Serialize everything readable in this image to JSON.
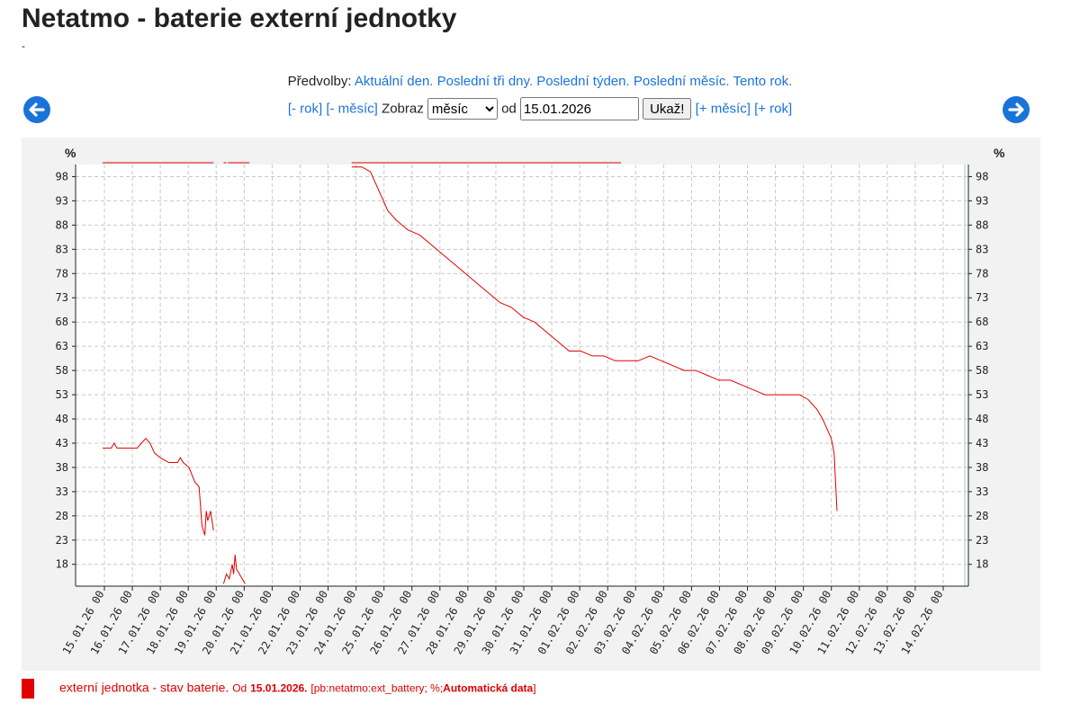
{
  "page": {
    "title": "Netatmo - baterie externí jednotky",
    "subtitle": "-"
  },
  "presets": {
    "label": "Předvolby:",
    "items": [
      "Aktuální den.",
      "Poslední tři dny.",
      "Poslední týden.",
      "Poslední měsíc.",
      "Tento rok."
    ]
  },
  "controls": {
    "prev_year": "[- rok]",
    "prev_month": "[- měsíc]",
    "show_label": "Zobraz",
    "range_options": [
      "měsíc"
    ],
    "range_selected": "měsíc",
    "from_label": "od",
    "date_value": "15.01.2026",
    "submit_label": "Ukaž!",
    "next_month": "[+ měsíc]",
    "next_year": "[+ rok]"
  },
  "icons": {
    "prev": "arrow-left-circle-icon",
    "next": "arrow-right-circle-icon"
  },
  "colors": {
    "series": "#e00000",
    "link": "#1a73d9",
    "plot_bg": "#f2f2f2"
  },
  "chart_data": {
    "type": "line",
    "ylabel_left": "%",
    "ylabel_right": "%",
    "ylim": [
      13.5,
      100.5
    ],
    "yticks": [
      98,
      93,
      88,
      83,
      78,
      73,
      68,
      63,
      58,
      53,
      48,
      43,
      38,
      33,
      28,
      23,
      18
    ],
    "xticks": [
      "15.01.26 00",
      "16.01.26 00",
      "17.01.26 00",
      "18.01.26 00",
      "19.01.26 00",
      "20.01.26 00",
      "21.01.26 00",
      "22.01.26 00",
      "23.01.26 00",
      "24.01.26 00",
      "25.01.26 00",
      "26.01.26 00",
      "27.01.26 00",
      "28.01.26 00",
      "29.01.26 00",
      "30.01.26 00",
      "31.01.26 00",
      "01.02.26 00",
      "02.02.26 00",
      "03.02.26 00",
      "04.02.26 00",
      "05.02.26 00",
      "06.02.26 00",
      "07.02.26 00",
      "08.02.26 00",
      "09.02.26 00",
      "10.02.26 00",
      "11.02.26 00",
      "12.02.26 00",
      "13.02.26 00",
      "14.02.26 00"
    ],
    "grid": true,
    "series": [
      {
        "name": "externí jednotka - stav baterie.",
        "segments": [
          [
            [
              14.0,
              42
            ],
            [
              14.3,
              42
            ],
            [
              14.4,
              43
            ],
            [
              14.5,
              42
            ],
            [
              15.0,
              42
            ],
            [
              15.2,
              42
            ],
            [
              15.35,
              43
            ],
            [
              15.5,
              44
            ],
            [
              15.65,
              43
            ],
            [
              15.8,
              41
            ],
            [
              16.0,
              40
            ],
            [
              16.3,
              39
            ],
            [
              16.6,
              39
            ],
            [
              16.7,
              40
            ],
            [
              16.8,
              39
            ],
            [
              17.0,
              38
            ],
            [
              17.2,
              35
            ],
            [
              17.35,
              34
            ],
            [
              17.45,
              26
            ],
            [
              17.55,
              24
            ],
            [
              17.6,
              29
            ],
            [
              17.65,
              27
            ],
            [
              17.75,
              29
            ],
            [
              17.85,
              25
            ]
          ],
          [
            [
              18.2,
              14
            ],
            [
              18.3,
              16
            ],
            [
              18.4,
              15
            ],
            [
              18.5,
              18
            ],
            [
              18.55,
              16
            ],
            [
              18.6,
              20
            ],
            [
              18.65,
              17
            ],
            [
              18.75,
              16
            ],
            [
              18.85,
              15
            ],
            [
              18.95,
              14
            ]
          ]
        ],
        "top_band_segments": [
          [
            14.0,
            17.85
          ],
          [
            18.2,
            18.3
          ],
          [
            18.35,
            19.1
          ],
          [
            22.65,
            32.0
          ]
        ],
        "main_curve": [
          [
            22.65,
            101
          ],
          [
            23.0,
            101
          ],
          [
            23.3,
            99
          ],
          [
            23.6,
            95
          ],
          [
            23.9,
            91
          ],
          [
            24.2,
            89
          ],
          [
            24.6,
            87
          ],
          [
            25.0,
            86
          ],
          [
            25.4,
            84
          ],
          [
            25.8,
            82
          ],
          [
            26.2,
            80
          ],
          [
            26.6,
            78
          ],
          [
            27.0,
            76
          ],
          [
            27.4,
            74
          ],
          [
            27.8,
            72
          ],
          [
            28.2,
            71
          ],
          [
            28.6,
            69
          ],
          [
            29.0,
            68
          ],
          [
            29.4,
            66
          ],
          [
            29.8,
            64
          ],
          [
            30.2,
            62
          ],
          [
            30.6,
            62
          ],
          [
            31.0,
            61
          ],
          [
            31.4,
            61
          ],
          [
            31.8,
            60
          ],
          [
            32.2,
            60
          ],
          [
            32.6,
            60
          ],
          [
            33.0,
            61
          ],
          [
            33.4,
            60
          ],
          [
            33.8,
            59
          ],
          [
            34.2,
            58
          ],
          [
            34.6,
            58
          ],
          [
            35.0,
            57
          ],
          [
            35.4,
            56
          ],
          [
            35.8,
            56
          ],
          [
            36.2,
            55
          ],
          [
            36.6,
            54
          ],
          [
            37.0,
            53
          ],
          [
            37.4,
            53
          ],
          [
            37.8,
            53
          ],
          [
            38.2,
            53
          ],
          [
            38.5,
            52
          ],
          [
            38.8,
            50
          ],
          [
            39.0,
            48
          ],
          [
            39.15,
            46
          ],
          [
            39.3,
            44
          ],
          [
            39.4,
            41
          ],
          [
            39.45,
            35
          ],
          [
            39.5,
            29
          ]
        ]
      }
    ]
  },
  "legend": {
    "series_name": "externí jednotka - stav baterie.",
    "from_label": "Od",
    "from_date": "15.01.2026.",
    "meta": "[pb:netatmo:ext_battery; %;",
    "source": "Automatická data",
    "close": "]"
  }
}
